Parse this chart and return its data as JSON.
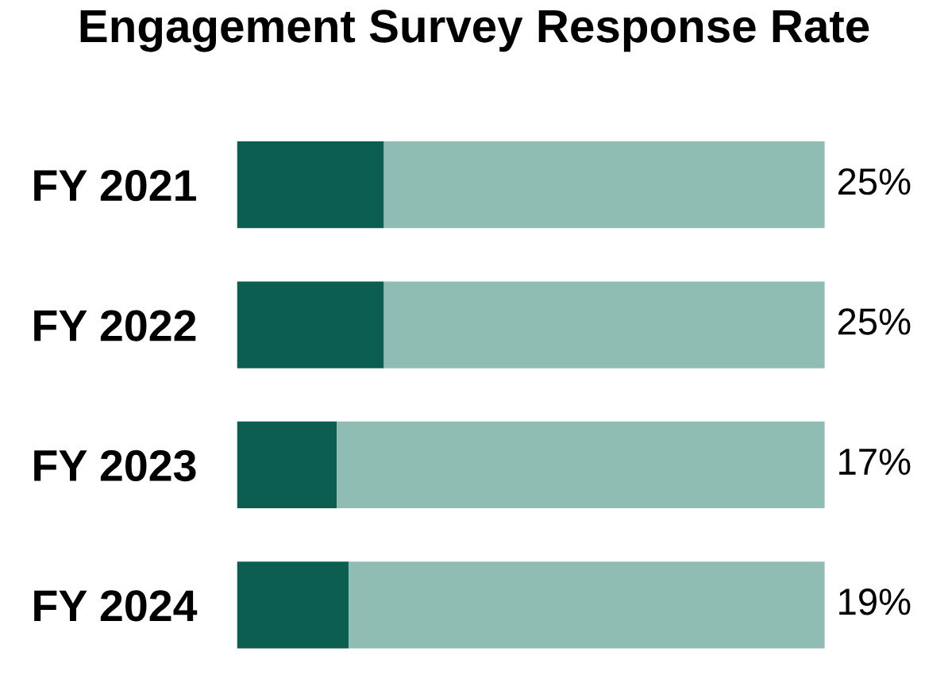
{
  "chart_data": {
    "type": "bar",
    "orientation": "horizontal",
    "stacked": true,
    "title": "Engagement Survey Response Rate",
    "categories": [
      "FY 2021",
      "FY 2022",
      "FY 2023",
      "FY 2024"
    ],
    "series": [
      {
        "color": "#0b5e50",
        "values": [
          25,
          25,
          17,
          19
        ],
        "value_labels": [
          "25%",
          "25%",
          "17%",
          "19%"
        ]
      },
      {
        "color": "#8fbcb3",
        "values": [
          75,
          75,
          83,
          81
        ]
      }
    ],
    "xlim": [
      0,
      100
    ],
    "tick_labels": "y",
    "grid": false,
    "legend": false
  }
}
